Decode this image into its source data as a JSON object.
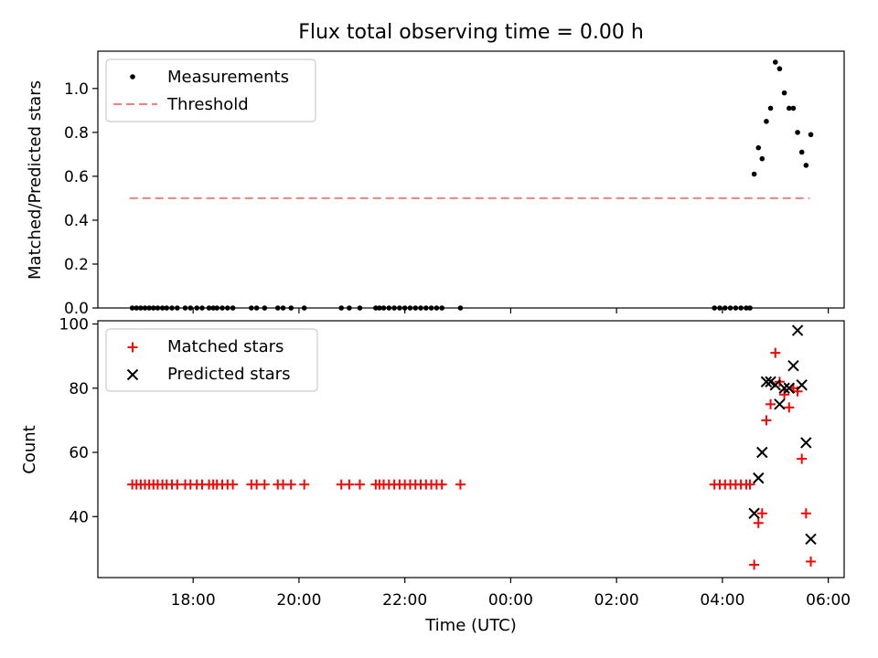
{
  "colors": {
    "measurement": "#000000",
    "threshold": "#f08080",
    "matched": "#ff0000",
    "predicted": "#000000"
  },
  "chart_data": [
    {
      "type": "scatter",
      "title": "Flux total observing time = 0.00 h",
      "xlabel": "",
      "ylabel": "Matched/Predicted stars",
      "xlim": [
        16.2,
        30.3
      ],
      "ylim": [
        0,
        1.17
      ],
      "yticks": [
        0.0,
        0.2,
        0.4,
        0.6,
        0.8,
        1.0
      ],
      "ytick_labels": [
        "0.0",
        "0.2",
        "0.4",
        "0.6",
        "0.8",
        "1.0"
      ],
      "xticks": [
        18,
        20,
        22,
        24,
        26,
        28,
        30
      ],
      "legend_position": "top-left",
      "legend": [
        "Measurements",
        "Threshold"
      ],
      "threshold": {
        "value": 0.5,
        "x": [
          16.8,
          29.65
        ]
      },
      "series": [
        {
          "name": "Measurements",
          "x": [
            16.85,
            16.93,
            17.01,
            17.09,
            17.17,
            17.25,
            17.33,
            17.42,
            17.5,
            17.6,
            17.7,
            17.85,
            17.95,
            18.07,
            18.17,
            18.3,
            18.38,
            18.45,
            18.55,
            18.65,
            18.75,
            19.1,
            19.2,
            19.35,
            19.6,
            19.7,
            19.85,
            20.1,
            20.8,
            20.95,
            21.15,
            21.45,
            21.52,
            21.6,
            21.7,
            21.8,
            21.9,
            22.0,
            22.1,
            22.2,
            22.3,
            22.4,
            22.5,
            22.6,
            22.7,
            23.05,
            27.85,
            27.95,
            28.05,
            28.15,
            28.25,
            28.35,
            28.45,
            28.52,
            28.6,
            28.68,
            28.75,
            28.83,
            28.91,
            29.0,
            29.08,
            29.17,
            29.26,
            29.34,
            29.42,
            29.5,
            29.58,
            29.67
          ],
          "y": [
            0,
            0,
            0,
            0,
            0,
            0,
            0,
            0,
            0,
            0,
            0,
            0,
            0,
            0,
            0,
            0,
            0,
            0,
            0,
            0,
            0,
            0,
            0,
            0,
            0,
            0,
            0,
            0,
            0,
            0,
            0,
            0,
            0,
            0,
            0,
            0,
            0,
            0,
            0,
            0,
            0,
            0,
            0,
            0,
            0,
            0,
            0,
            0,
            0,
            0,
            0,
            0,
            0,
            0,
            0.61,
            0.73,
            0.68,
            0.85,
            0.91,
            1.12,
            1.09,
            0.98,
            0.91,
            0.91,
            0.8,
            0.71,
            0.65,
            0.79
          ]
        }
      ]
    },
    {
      "type": "scatter",
      "title": "",
      "xlabel": "Time (UTC)",
      "ylabel": "Count",
      "xlim": [
        16.2,
        30.3
      ],
      "ylim": [
        21,
        101
      ],
      "yticks": [
        40,
        60,
        80,
        100
      ],
      "ytick_labels": [
        "40",
        "60",
        "80",
        "100"
      ],
      "xticks": [
        18,
        20,
        22,
        24,
        26,
        28,
        30
      ],
      "xtick_labels": [
        "18:00",
        "20:00",
        "22:00",
        "00:00",
        "02:00",
        "04:00",
        "06:00"
      ],
      "legend_position": "top-left",
      "legend": [
        "Matched stars",
        "Predicted stars"
      ],
      "series": [
        {
          "name": "Matched stars",
          "x": [
            16.85,
            16.93,
            17.01,
            17.09,
            17.17,
            17.25,
            17.33,
            17.42,
            17.5,
            17.6,
            17.7,
            17.85,
            17.95,
            18.07,
            18.17,
            18.3,
            18.38,
            18.45,
            18.55,
            18.65,
            18.75,
            19.1,
            19.2,
            19.35,
            19.6,
            19.7,
            19.85,
            20.1,
            20.8,
            20.95,
            21.15,
            21.45,
            21.52,
            21.6,
            21.7,
            21.8,
            21.9,
            22.0,
            22.1,
            22.2,
            22.3,
            22.4,
            22.5,
            22.6,
            22.7,
            23.05,
            27.85,
            27.95,
            28.05,
            28.15,
            28.25,
            28.35,
            28.45,
            28.52,
            28.6,
            28.68,
            28.75,
            28.83,
            28.91,
            29.0,
            29.08,
            29.17,
            29.26,
            29.34,
            29.42,
            29.5,
            29.58,
            29.67
          ],
          "y": [
            50,
            50,
            50,
            50,
            50,
            50,
            50,
            50,
            50,
            50,
            50,
            50,
            50,
            50,
            50,
            50,
            50,
            50,
            50,
            50,
            50,
            50,
            50,
            50,
            50,
            50,
            50,
            50,
            50,
            50,
            50,
            50,
            50,
            50,
            50,
            50,
            50,
            50,
            50,
            50,
            50,
            50,
            50,
            50,
            50,
            50,
            50,
            50,
            50,
            50,
            50,
            50,
            50,
            50,
            25,
            38,
            41,
            70,
            75,
            91,
            82,
            78,
            74,
            80,
            79,
            58,
            41,
            26
          ]
        },
        {
          "name": "Predicted stars",
          "x": [
            28.6,
            28.68,
            28.75,
            28.83,
            28.91,
            29.0,
            29.08,
            29.17,
            29.26,
            29.34,
            29.42,
            29.5,
            29.58,
            29.67
          ],
          "y": [
            41,
            52,
            60,
            82,
            82,
            81,
            75,
            80,
            80,
            87,
            98,
            81,
            63,
            33
          ]
        }
      ]
    }
  ]
}
